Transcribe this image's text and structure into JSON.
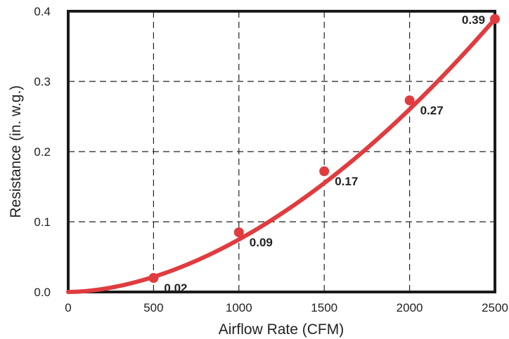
{
  "chart_data": {
    "type": "line",
    "title": "",
    "xlabel": "Airflow Rate (CFM)",
    "ylabel": "Resistance (in. w.g.)",
    "xlim": [
      0,
      2500
    ],
    "ylim": [
      0,
      0.4
    ],
    "x_ticks": [
      "0",
      "500",
      "1000",
      "1500",
      "2000",
      "2500"
    ],
    "y_ticks": [
      "0.0",
      "0.1",
      "0.2",
      "0.3",
      "0.4"
    ],
    "grid": true,
    "legend": "none",
    "series": [
      {
        "color": "#e03c3f",
        "x": [
          500,
          1000,
          1500,
          2000,
          2500
        ],
        "values": [
          0.02,
          0.085,
          0.172,
          0.273,
          0.389
        ],
        "labels": [
          "0.02",
          "0.09",
          "0.17",
          "0.27",
          "0.39"
        ]
      }
    ],
    "curve_exponent": 1.8
  }
}
